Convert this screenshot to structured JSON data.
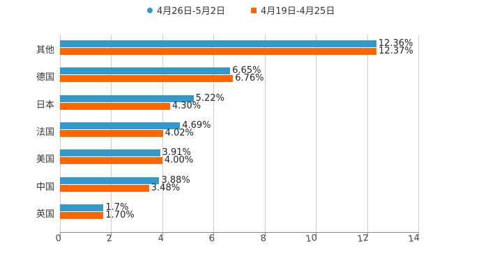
{
  "chart_data": {
    "type": "bar",
    "orientation": "horizontal",
    "title": "",
    "xlabel": "",
    "ylabel": "",
    "xlim": [
      0,
      14
    ],
    "x_ticks": [
      "0",
      "2",
      "4",
      "6",
      "8",
      "10",
      "12",
      "14"
    ],
    "grid": true,
    "legend_position": "top",
    "categories": [
      "其他",
      "德国",
      "日本",
      "法国",
      "美国",
      "中国",
      "英国"
    ],
    "series": [
      {
        "name": "4月26日-5月2日",
        "color": "#3399cc",
        "values": [
          12.36,
          6.65,
          5.22,
          4.69,
          3.91,
          3.88,
          1.7
        ],
        "labels": [
          "12.36%",
          "6.65%",
          "5.22%",
          "4.69%",
          "3.91%",
          "3.88%",
          "1.7%"
        ]
      },
      {
        "name": "4月19日-4月25日",
        "color": "#ff6600",
        "values": [
          12.37,
          6.76,
          4.3,
          4.02,
          4.0,
          3.48,
          1.7
        ],
        "labels": [
          "12.37%",
          "6.76%",
          "4.30%",
          "4.02%",
          "4.00%",
          "3.48%",
          "1.70%"
        ]
      }
    ]
  },
  "legend": [
    {
      "label": "4月26日-5月2日",
      "color": "#3399cc"
    },
    {
      "label": "4月19日-4月25日",
      "color": "#ff6600"
    }
  ]
}
